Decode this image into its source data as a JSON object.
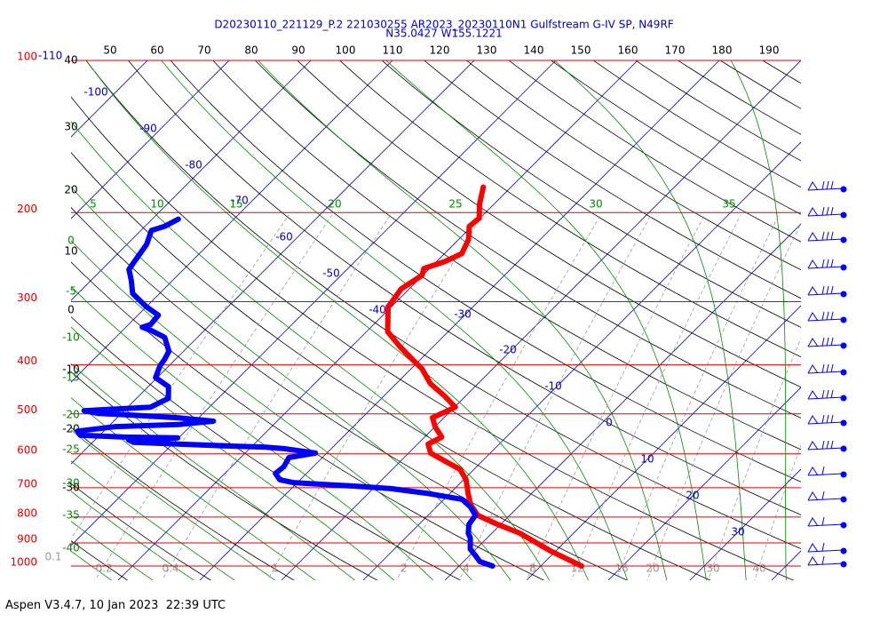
{
  "chart_data": {
    "type": "skewt",
    "title": "D20230110_221129_P.2 221030255 AR2023_20230110N1 Gulfstream G-IV SP, N49RF",
    "subtitle": "N35.0427 W155.1221",
    "ylim": [
      1000,
      100
    ],
    "yticks": [
      100,
      200,
      300,
      400,
      500,
      600,
      700,
      800,
      900,
      1000
    ],
    "isotherm_labels": [
      -110,
      -100,
      -90,
      -80,
      -70,
      -60,
      -50,
      -40,
      -30,
      -20,
      -10,
      0,
      10,
      20,
      30
    ],
    "top_labels": [
      50,
      60,
      70,
      80,
      90,
      100,
      110,
      120,
      130,
      140,
      150,
      160,
      170,
      180,
      190
    ],
    "left_labels": [
      40,
      30,
      20,
      10,
      0,
      -10,
      -20,
      -30
    ],
    "moist_adiabat_top_labels": [
      5,
      10,
      15,
      20,
      25,
      30,
      35
    ],
    "moist_adiabat_left_labels": [
      0,
      -5,
      -10,
      -15,
      -20,
      -25,
      -30,
      -35,
      -40
    ],
    "mixing_ratio_labels": [
      0.1,
      0.2,
      0.4,
      1,
      2,
      4,
      8,
      12,
      16,
      20,
      30,
      40
    ],
    "series": [
      {
        "name": "Temperature",
        "color": "#ff0000",
        "pressure": [
          1000,
          933,
          861,
          827,
          794,
          756,
          718,
          675,
          644,
          623,
          598,
          574,
          556,
          530,
          509,
          485,
          460,
          436,
          407,
          391,
          368,
          344,
          307,
          294,
          283,
          266,
          258,
          250,
          241,
          226,
          213,
          205,
          193,
          178
        ],
        "values": [
          15.0,
          9.3,
          3.4,
          -0.4,
          -3.9,
          -6.1,
          -7.8,
          -9.7,
          -11.7,
          -14.2,
          -17.3,
          -18.7,
          -17.9,
          -20.0,
          -21.4,
          -19.9,
          -22.7,
          -25.8,
          -28.7,
          -30.9,
          -34.1,
          -37.4,
          -40.4,
          -40.7,
          -41.0,
          -40.1,
          -40.7,
          -39.0,
          -37.9,
          -38.8,
          -40.3,
          -40.1,
          -41.7,
          -43.4
        ]
      },
      {
        "name": "Dewpoint",
        "color": "#0000ff",
        "pressure": [
          1000,
          980,
          953,
          926,
          879,
          861,
          827,
          794,
          763,
          738,
          718,
          703,
          695,
          689,
          684,
          675,
          656,
          636,
          610,
          598,
          586,
          582,
          579,
          574,
          569,
          563,
          561,
          558,
          556,
          551,
          541,
          530,
          525,
          517,
          509,
          503,
          499,
          493,
          485,
          466,
          442,
          424,
          402,
          391,
          376,
          353,
          342,
          337,
          333,
          319,
          307,
          289,
          272,
          259,
          246,
          231,
          217,
          213,
          206
        ],
        "values": [
          4.1,
          2.0,
          0.7,
          -0.7,
          -2.1,
          -2.9,
          -3.9,
          -4.2,
          -5.9,
          -7.8,
          -12.9,
          -17.8,
          -22.5,
          -27.1,
          -30.5,
          -32.5,
          -33.8,
          -33.6,
          -34.1,
          -31.4,
          -35.8,
          -38.2,
          -42.6,
          -49.3,
          -55.0,
          -55.9,
          -52.7,
          -50.1,
          -56.7,
          -62.4,
          -63.2,
          -59.1,
          -51.7,
          -47.8,
          -52.6,
          -58.4,
          -62.9,
          -64.9,
          -57.2,
          -56.1,
          -57.5,
          -60.2,
          -61.1,
          -61.3,
          -61.8,
          -64.0,
          -66.5,
          -68.0,
          -67.3,
          -67.5,
          -70.0,
          -73.3,
          -75.1,
          -76.7,
          -77.1,
          -77.6,
          -78.7,
          -77.6,
          -76.8
        ]
      }
    ]
  },
  "footer": "Aspen V3.4.7, 10 Jan 2023  22:39 UTC"
}
